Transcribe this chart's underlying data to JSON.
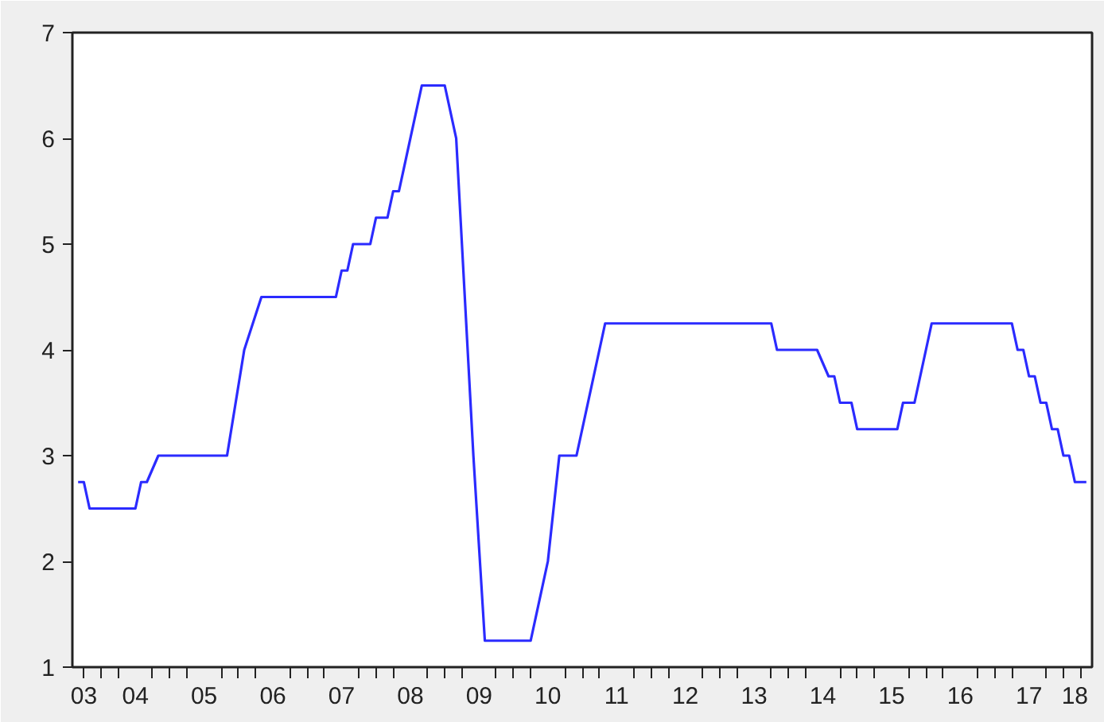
{
  "chart_data": {
    "type": "line",
    "color": "#2b2bff",
    "grid": false,
    "marker": "none",
    "line_style": "solid",
    "x": [
      "2003-09",
      "2003-10",
      "2003-11",
      "2004-07",
      "2004-08",
      "2004-09",
      "2004-11",
      "2005-11",
      "2006-02",
      "2006-05",
      "2007-06",
      "2007-07",
      "2007-08",
      "2007-09",
      "2007-12",
      "2008-01",
      "2008-03",
      "2008-04",
      "2008-05",
      "2008-09",
      "2009-01",
      "2009-03",
      "2009-06",
      "2009-08",
      "2010-04",
      "2010-07",
      "2010-09",
      "2010-12",
      "2011-05",
      "2013-10",
      "2013-11",
      "2014-06",
      "2014-08",
      "2014-09",
      "2014-10",
      "2014-12",
      "2015-01",
      "2015-08",
      "2015-09",
      "2015-11",
      "2016-02",
      "2017-04",
      "2017-05",
      "2017-06",
      "2017-07",
      "2017-08",
      "2017-09",
      "2017-10",
      "2017-11",
      "2017-12",
      "2018-01",
      "2018-02",
      "2018-03",
      "2018-05"
    ],
    "values": [
      2.75,
      2.75,
      2.5,
      2.5,
      2.75,
      2.75,
      3.0,
      3.0,
      4.0,
      4.5,
      4.5,
      4.75,
      4.75,
      5.0,
      5.0,
      5.25,
      5.25,
      5.5,
      5.5,
      6.5,
      6.5,
      6.0,
      3.0,
      1.25,
      1.25,
      2.0,
      3.0,
      3.0,
      4.25,
      4.25,
      4.0,
      4.0,
      3.75,
      3.75,
      3.5,
      3.5,
      3.25,
      3.25,
      3.5,
      3.5,
      4.25,
      4.25,
      4.0,
      4.0,
      3.75,
      3.75,
      3.5,
      3.5,
      3.25,
      3.25,
      3.0,
      3.0,
      2.75,
      2.75
    ],
    "xlim": [
      "2003-08",
      "2018-06"
    ],
    "ylim": [
      1,
      7
    ],
    "yticks": [
      1,
      2,
      3,
      4,
      5,
      6,
      7
    ],
    "xticks": [
      {
        "value": "2003-10",
        "label": "03"
      },
      {
        "value": "2004-07",
        "label": "04"
      },
      {
        "value": "2005-07",
        "label": "05"
      },
      {
        "value": "2006-07",
        "label": "06"
      },
      {
        "value": "2007-07",
        "label": "07"
      },
      {
        "value": "2008-07",
        "label": "08"
      },
      {
        "value": "2009-07",
        "label": "09"
      },
      {
        "value": "2010-07",
        "label": "10"
      },
      {
        "value": "2011-07",
        "label": "11"
      },
      {
        "value": "2012-07",
        "label": "12"
      },
      {
        "value": "2013-07",
        "label": "13"
      },
      {
        "value": "2014-07",
        "label": "14"
      },
      {
        "value": "2015-07",
        "label": "15"
      },
      {
        "value": "2016-07",
        "label": "16"
      },
      {
        "value": "2017-07",
        "label": "17"
      },
      {
        "value": "2018-03",
        "label": "18"
      },
      {
        "value": "2003-10",
        "label": null
      },
      {
        "value": "2004-01",
        "label": null
      },
      {
        "value": "2004-04",
        "label": null
      },
      {
        "value": "2004-10",
        "label": null
      },
      {
        "value": "2005-01",
        "label": null
      },
      {
        "value": "2005-04",
        "label": null
      },
      {
        "value": "2005-10",
        "label": null
      },
      {
        "value": "2006-01",
        "label": null
      },
      {
        "value": "2006-04",
        "label": null
      },
      {
        "value": "2006-10",
        "label": null
      },
      {
        "value": "2007-01",
        "label": null
      },
      {
        "value": "2007-04",
        "label": null
      },
      {
        "value": "2007-10",
        "label": null
      },
      {
        "value": "2008-01",
        "label": null
      },
      {
        "value": "2008-04",
        "label": null
      },
      {
        "value": "2008-10",
        "label": null
      },
      {
        "value": "2009-01",
        "label": null
      },
      {
        "value": "2009-04",
        "label": null
      },
      {
        "value": "2009-10",
        "label": null
      },
      {
        "value": "2010-01",
        "label": null
      },
      {
        "value": "2010-04",
        "label": null
      },
      {
        "value": "2010-10",
        "label": null
      },
      {
        "value": "2011-01",
        "label": null
      },
      {
        "value": "2011-04",
        "label": null
      },
      {
        "value": "2011-10",
        "label": null
      },
      {
        "value": "2012-01",
        "label": null
      },
      {
        "value": "2012-04",
        "label": null
      },
      {
        "value": "2012-10",
        "label": null
      },
      {
        "value": "2013-01",
        "label": null
      },
      {
        "value": "2013-04",
        "label": null
      },
      {
        "value": "2013-10",
        "label": null
      },
      {
        "value": "2014-01",
        "label": null
      },
      {
        "value": "2014-04",
        "label": null
      },
      {
        "value": "2014-10",
        "label": null
      },
      {
        "value": "2015-01",
        "label": null
      },
      {
        "value": "2015-04",
        "label": null
      },
      {
        "value": "2015-10",
        "label": null
      },
      {
        "value": "2016-01",
        "label": null
      },
      {
        "value": "2016-04",
        "label": null
      },
      {
        "value": "2016-10",
        "label": null
      },
      {
        "value": "2017-01",
        "label": null
      },
      {
        "value": "2017-04",
        "label": null
      },
      {
        "value": "2017-10",
        "label": null
      },
      {
        "value": "2018-01",
        "label": null
      },
      {
        "value": "2018-04",
        "label": null
      }
    ]
  }
}
